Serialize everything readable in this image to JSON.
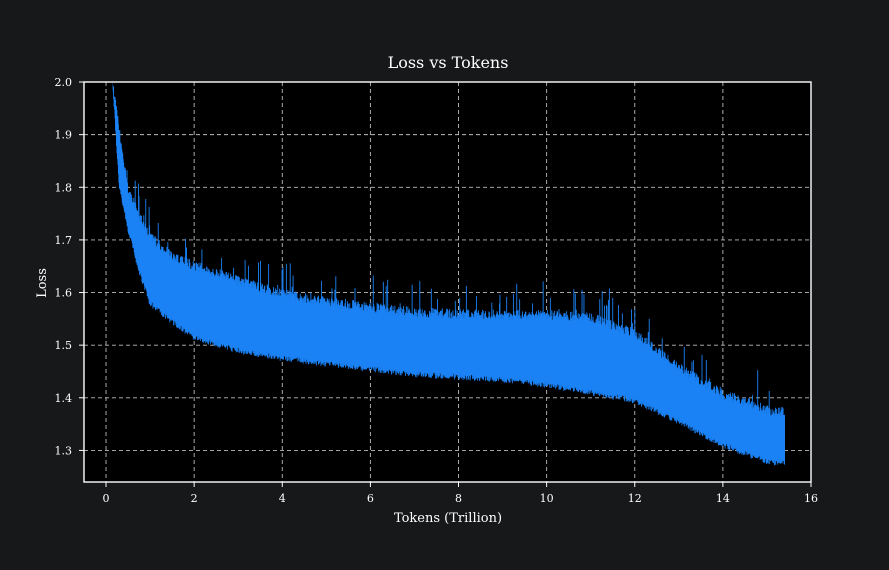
{
  "chart_data": {
    "type": "line",
    "title": "Loss vs Tokens",
    "xlabel": "Tokens (Trillion)",
    "ylabel": "Loss",
    "xlim": [
      -0.5,
      16
    ],
    "ylim": [
      1.24,
      2.0
    ],
    "xticks": [
      0,
      2,
      4,
      6,
      8,
      10,
      12,
      14,
      16
    ],
    "yticks": [
      1.3,
      1.4,
      1.5,
      1.6,
      1.7,
      1.8,
      1.9,
      2.0
    ],
    "xtick_labels": [
      "0",
      "2",
      "4",
      "6",
      "8",
      "10",
      "12",
      "14",
      "16"
    ],
    "ytick_labels": [
      "1.3",
      "1.4",
      "1.5",
      "1.6",
      "1.7",
      "1.8",
      "1.9",
      "2.0"
    ],
    "grid": true,
    "colors": {
      "background": "#171819",
      "plot_background": "#000000",
      "series": "#1a82f5",
      "frame": "#ffffff",
      "grid": "#bcbcbc",
      "text": "#ffffff"
    },
    "series": [
      {
        "x": [
          0.15,
          0.3,
          0.5,
          0.75,
          1.0,
          1.5,
          2.0,
          3.0,
          4.0,
          5.0,
          6.0,
          7.0,
          8.0,
          9.0,
          10.0,
          11.0,
          12.0,
          13.0,
          14.0,
          15.0,
          15.4
        ],
        "upper": [
          2.0,
          1.91,
          1.8,
          1.75,
          1.71,
          1.67,
          1.655,
          1.625,
          1.6,
          1.585,
          1.575,
          1.565,
          1.562,
          1.56,
          1.56,
          1.555,
          1.525,
          1.46,
          1.41,
          1.38,
          1.375
        ],
        "lower": [
          2.0,
          1.8,
          1.72,
          1.64,
          1.58,
          1.545,
          1.515,
          1.49,
          1.475,
          1.465,
          1.455,
          1.445,
          1.44,
          1.435,
          1.425,
          1.41,
          1.395,
          1.355,
          1.31,
          1.28,
          1.275
        ]
      }
    ]
  }
}
